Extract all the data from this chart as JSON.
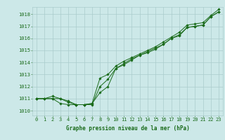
{
  "x": [
    0,
    1,
    2,
    3,
    4,
    5,
    6,
    7,
    8,
    9,
    10,
    11,
    12,
    13,
    14,
    15,
    16,
    17,
    18,
    19,
    20,
    21,
    22,
    23
  ],
  "line1": [
    1011.0,
    1011.0,
    1011.0,
    1010.6,
    1010.5,
    1010.5,
    1010.5,
    1010.6,
    1011.5,
    1012.0,
    1013.5,
    1013.8,
    1014.2,
    1014.6,
    1014.8,
    1015.1,
    1015.5,
    1016.0,
    1016.2,
    1016.9,
    1017.0,
    1017.1,
    1017.8,
    1018.2
  ],
  "line2": [
    1011.0,
    1011.0,
    1011.0,
    1011.0,
    1010.8,
    1010.5,
    1010.5,
    1010.5,
    1012.0,
    1012.6,
    1013.5,
    1013.9,
    1014.3,
    1014.6,
    1014.9,
    1015.2,
    1015.5,
    1016.0,
    1016.3,
    1016.9,
    1017.0,
    1017.1,
    1017.8,
    1018.2
  ],
  "line3": [
    1011.0,
    1011.0,
    1011.2,
    1011.0,
    1010.7,
    1010.5,
    1010.5,
    1010.6,
    1012.7,
    1013.0,
    1013.7,
    1014.1,
    1014.4,
    1014.7,
    1015.0,
    1015.3,
    1015.7,
    1016.1,
    1016.5,
    1017.1,
    1017.2,
    1017.3,
    1017.9,
    1018.4
  ],
  "bg_color": "#cce8e8",
  "grid_color": "#aacccc",
  "line_color": "#1a6b1a",
  "title": "Graphe pression niveau de la mer (hPa)",
  "ylabel_ticks": [
    1010,
    1011,
    1012,
    1013,
    1014,
    1015,
    1016,
    1017,
    1018
  ],
  "ylim": [
    1009.6,
    1018.6
  ],
  "xlim": [
    -0.5,
    23.5
  ],
  "tick_fontsize": 5.0,
  "title_fontsize": 5.5
}
